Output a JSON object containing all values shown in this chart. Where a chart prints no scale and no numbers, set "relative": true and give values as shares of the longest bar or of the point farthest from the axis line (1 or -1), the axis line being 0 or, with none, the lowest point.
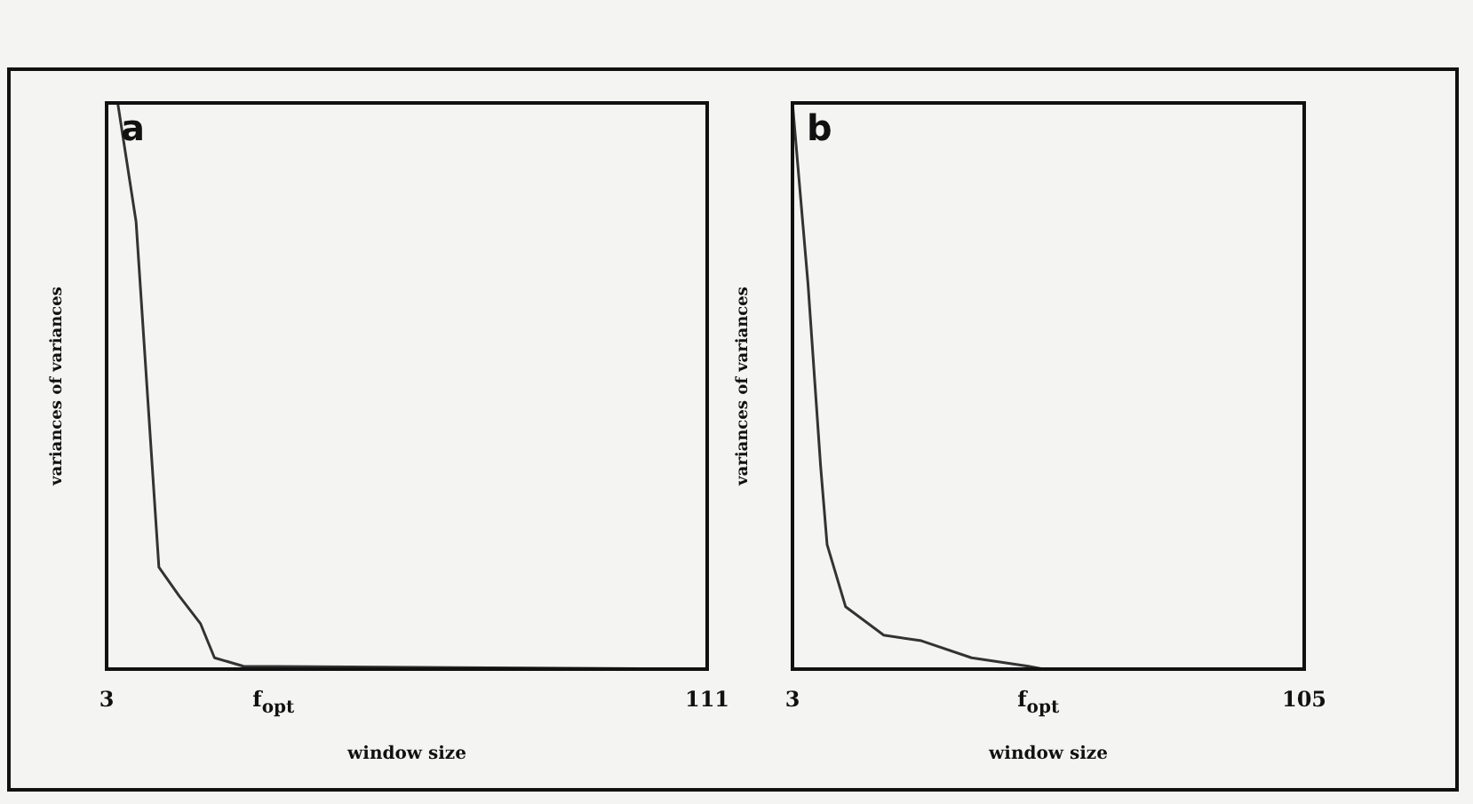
{
  "chart_data": [
    {
      "type": "line",
      "title": "a",
      "xlabel": "window size",
      "ylabel": "variances of variances",
      "relative": true,
      "xlim": [
        3,
        111
      ],
      "xticks": [
        3,
        {
          "value": 33,
          "label": "f$_{opt}$"
        },
        111
      ],
      "grid": false,
      "legend": false,
      "marker": "none",
      "series": [
        {
          "color": "#333333",
          "x": [
            5,
            8.3,
            12.4,
            16,
            19.9,
            22.4,
            27.6,
            111
          ],
          "values": [
            1,
            0.79,
            0.18,
            0.13,
            0.08,
            0.02,
            0.005,
            0
          ]
        }
      ]
    },
    {
      "type": "line",
      "title": "b",
      "xlabel": "window size",
      "ylabel": "variances of variances",
      "relative": true,
      "xlim": [
        3,
        105
      ],
      "xticks": [
        3,
        {
          "value": 52,
          "label": "f$_{opt}$"
        },
        105
      ],
      "grid": false,
      "legend": false,
      "marker": "none",
      "series": [
        {
          "color": "#333333",
          "x": [
            3,
            6.1,
            8.6,
            9.9,
            13.6,
            21.2,
            28.7,
            38.7,
            50,
            53,
            105
          ],
          "values": [
            1,
            0.68,
            0.36,
            0.22,
            0.11,
            0.06,
            0.05,
            0.02,
            0.005,
            0,
            0
          ]
        }
      ]
    }
  ]
}
